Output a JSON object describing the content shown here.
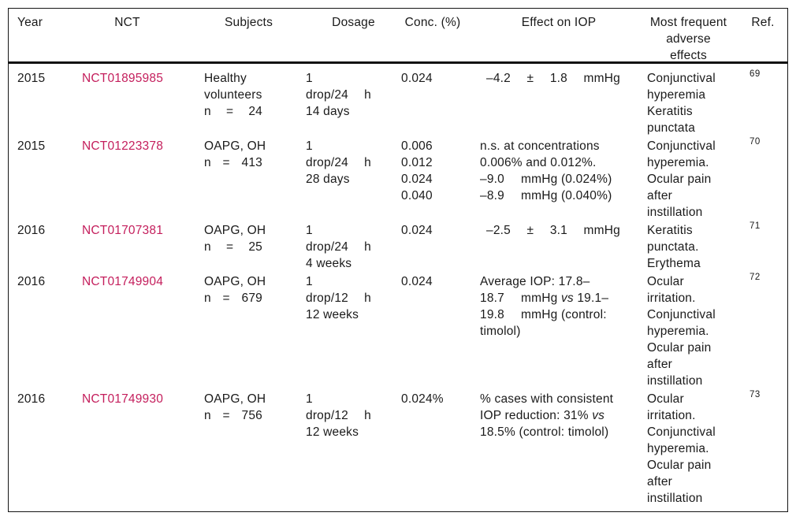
{
  "colors": {
    "link_text": "#c41e5c",
    "body_text": "#1a1a1a",
    "border": "#151515",
    "background": "#ffffff"
  },
  "header": {
    "year": "Year",
    "nct": "NCT",
    "subjects": "Subjects",
    "dosage": "Dosage",
    "conc": "Conc. (%)",
    "effect": "Effect on IOP",
    "adverse_lines": [
      "Most frequent",
      "adverse",
      "effects"
    ],
    "ref": "Ref."
  },
  "rows": [
    {
      "year": "2015",
      "nct": "NCT01895985",
      "subjects_lines": [
        "Healthy",
        "volunteers"
      ],
      "n": {
        "label": "n",
        "eq": "=",
        "value": "24"
      },
      "dosage": {
        "drops": "1",
        "freq": "drop/24",
        "unit": "h",
        "duration": "14 days"
      },
      "conc": [
        "0.024"
      ],
      "effect": [
        "–4.2",
        "±",
        "1.8",
        "mmHg"
      ],
      "adverse": [
        "Conjunctival",
        "hyperemia",
        "Keratitis",
        "punctata"
      ],
      "ref": "69"
    },
    {
      "year": "2015",
      "nct": "NCT01223378",
      "subjects_lines": [
        "OAPG, OH"
      ],
      "n": {
        "label": "n",
        "eq": "=",
        "value": "413"
      },
      "dosage": {
        "drops": "1",
        "freq": "drop/24",
        "unit": "h",
        "duration": "28 days"
      },
      "conc": [
        "0.006",
        "0.012",
        "0.024",
        "0.040"
      ],
      "effect": {
        "l1": "n.s. at concentrations",
        "l2": "0.006% and 0.012%.",
        "l3num": "–9.0",
        "l3rest": "mmHg (0.024%)",
        "l4num": "–8.9",
        "l4rest": "mmHg (0.040%)"
      },
      "adverse": [
        "Conjunctival",
        "hyperemia.",
        "Ocular pain",
        "after",
        "instillation"
      ],
      "ref": "70"
    },
    {
      "year": "2016",
      "nct": "NCT01707381",
      "subjects_lines": [
        "OAPG, OH"
      ],
      "n": {
        "label": "n",
        "eq": "=",
        "value": "25"
      },
      "dosage": {
        "drops": "1",
        "freq": "drop/24",
        "unit": "h",
        "duration": "4 weeks"
      },
      "conc": [
        "0.024"
      ],
      "effect": [
        "–2.5",
        "±",
        "3.1",
        "mmHg"
      ],
      "adverse": [
        "Keratitis",
        "punctata.",
        "Erythema"
      ],
      "ref": "71"
    },
    {
      "year": "2016",
      "nct": "NCT01749904",
      "subjects_lines": [
        "OAPG, OH"
      ],
      "n": {
        "label": "n",
        "eq": "=",
        "value": "679"
      },
      "dosage": {
        "drops": "1",
        "freq": "drop/12",
        "unit": "h",
        "duration": "12 weeks"
      },
      "conc": [
        "0.024"
      ],
      "effect": {
        "l1": "Average IOP: 17.8–",
        "l2num": "18.7",
        "l2a": "mmHg ",
        "l2vs": "vs",
        "l2b": " 19.1–",
        "l3num": "19.8",
        "l3rest": "mmHg (control:",
        "l4": "timolol)"
      },
      "adverse": [
        "Ocular",
        "irritation.",
        "Conjunctival",
        "hyperemia.",
        "Ocular pain",
        "after",
        "instillation"
      ],
      "ref": "72"
    },
    {
      "year": "2016",
      "nct": "NCT01749930",
      "subjects_lines": [
        "OAPG, OH"
      ],
      "n": {
        "label": "n",
        "eq": "=",
        "value": "756"
      },
      "dosage": {
        "drops": "1",
        "freq": "drop/12",
        "unit": "h",
        "duration": "12 weeks"
      },
      "conc": [
        "0.024%"
      ],
      "effect": {
        "l1": "% cases with consistent",
        "l2a": "IOP reduction: 31% ",
        "l2vs": "vs",
        "l3": "18.5% (control: timolol)"
      },
      "adverse": [
        "Ocular",
        "irritation.",
        "Conjunctival",
        "hyperemia.",
        "Ocular pain",
        "after",
        "instillation"
      ],
      "ref": "73"
    }
  ]
}
